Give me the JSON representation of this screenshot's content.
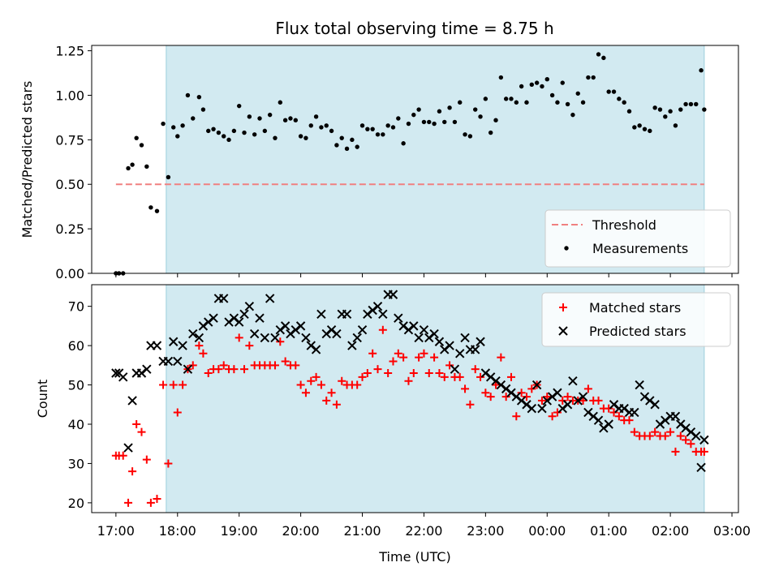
{
  "chart_data": [
    {
      "type": "scatter",
      "title": "Flux total observing time = 8.75 h",
      "ylabel": "Matched/Predicted stars",
      "xlabel": "",
      "x_unit": "time_utc_hhmm",
      "ylim": [
        0,
        1.28
      ],
      "yticks": [
        "0.00",
        "0.25",
        "0.50",
        "0.75",
        "1.00",
        "1.25"
      ],
      "shaded_span": {
        "x0": "17:49",
        "x1": "02:33"
      },
      "legend_position": "lower-right",
      "series": [
        {
          "name": "Threshold",
          "kind": "dashed-line",
          "color": "#f08080",
          "x": [
            "17:00",
            "02:33"
          ],
          "y": [
            0.5,
            0.5
          ]
        },
        {
          "name": "Measurements",
          "kind": "dots",
          "color": "#000000",
          "x": [
            "17:00",
            "17:03",
            "17:07",
            "17:12",
            "17:16",
            "17:20",
            "17:25",
            "17:30",
            "17:34",
            "17:40",
            "17:46",
            "17:51",
            "17:56",
            "18:00",
            "18:05",
            "18:10",
            "18:15",
            "18:21",
            "18:25",
            "18:30",
            "18:35",
            "18:40",
            "18:45",
            "18:50",
            "18:55",
            "19:00",
            "19:05",
            "19:10",
            "19:15",
            "19:20",
            "19:25",
            "19:30",
            "19:35",
            "19:40",
            "19:45",
            "19:50",
            "19:55",
            "20:00",
            "20:05",
            "20:10",
            "20:15",
            "20:20",
            "20:25",
            "20:30",
            "20:35",
            "20:40",
            "20:45",
            "20:50",
            "20:55",
            "21:00",
            "21:05",
            "21:10",
            "21:15",
            "21:20",
            "21:25",
            "21:30",
            "21:35",
            "21:40",
            "21:45",
            "21:50",
            "21:55",
            "22:00",
            "22:05",
            "22:10",
            "22:15",
            "22:20",
            "22:25",
            "22:30",
            "22:35",
            "22:40",
            "22:45",
            "22:50",
            "22:55",
            "23:00",
            "23:05",
            "23:10",
            "23:15",
            "23:20",
            "23:25",
            "23:30",
            "23:35",
            "23:40",
            "23:45",
            "23:50",
            "23:55",
            "00:00",
            "00:05",
            "00:10",
            "00:15",
            "00:20",
            "00:25",
            "00:30",
            "00:35",
            "00:40",
            "00:45",
            "00:50",
            "00:55",
            "01:00",
            "01:05",
            "01:10",
            "01:15",
            "01:20",
            "01:25",
            "01:30",
            "01:35",
            "01:40",
            "01:45",
            "01:50",
            "01:55",
            "02:00",
            "02:05",
            "02:10",
            "02:15",
            "02:20",
            "02:25",
            "02:30",
            "02:33"
          ],
          "y": [
            0.0,
            0.0,
            0.0,
            0.59,
            0.61,
            0.76,
            0.72,
            0.6,
            0.37,
            0.35,
            0.84,
            0.54,
            0.82,
            0.77,
            0.83,
            1.0,
            0.87,
            0.99,
            0.92,
            0.8,
            0.81,
            0.79,
            0.77,
            0.75,
            0.8,
            0.94,
            0.79,
            0.88,
            0.78,
            0.87,
            0.8,
            0.89,
            0.76,
            0.96,
            0.86,
            0.87,
            0.86,
            0.77,
            0.76,
            0.83,
            0.88,
            0.82,
            0.83,
            0.8,
            0.72,
            0.76,
            0.7,
            0.75,
            0.71,
            0.83,
            0.81,
            0.81,
            0.78,
            0.78,
            0.83,
            0.82,
            0.87,
            0.73,
            0.84,
            0.89,
            0.92,
            0.85,
            0.85,
            0.84,
            0.91,
            0.85,
            0.93,
            0.85,
            0.96,
            0.78,
            0.77,
            0.92,
            0.88,
            0.98,
            0.79,
            0.86,
            1.1,
            0.98,
            0.98,
            0.96,
            1.05,
            0.96,
            1.06,
            1.07,
            1.05,
            1.09,
            1.0,
            0.96,
            1.07,
            0.95,
            0.89,
            1.01,
            0.96,
            1.1,
            1.1,
            1.23,
            1.21,
            1.02,
            1.02,
            0.98,
            0.96,
            0.91,
            0.82,
            0.83,
            0.81,
            0.8,
            0.93,
            0.92,
            0.88,
            0.91,
            0.83,
            0.92,
            0.95,
            0.95,
            0.95,
            1.14,
            0.92
          ]
        }
      ]
    },
    {
      "type": "scatter",
      "title": "",
      "ylabel": "Count",
      "xlabel": "Time (UTC)",
      "x_unit": "time_utc_hhmm",
      "ylim": [
        17.5,
        75.5
      ],
      "yticks": [
        "20",
        "30",
        "40",
        "50",
        "60",
        "70"
      ],
      "xticks": [
        "17:00",
        "18:00",
        "19:00",
        "20:00",
        "21:00",
        "22:00",
        "23:00",
        "00:00",
        "01:00",
        "02:00",
        "03:00"
      ],
      "shaded_span": {
        "x0": "17:49",
        "x1": "02:33"
      },
      "legend_position": "top-right",
      "series": [
        {
          "name": "Matched stars",
          "kind": "plus",
          "color": "#ff0000",
          "x": [
            "17:00",
            "17:03",
            "17:07",
            "17:12",
            "17:16",
            "17:20",
            "17:25",
            "17:30",
            "17:34",
            "17:40",
            "17:46",
            "17:51",
            "17:56",
            "18:00",
            "18:05",
            "18:10",
            "18:15",
            "18:21",
            "18:25",
            "18:30",
            "18:35",
            "18:40",
            "18:45",
            "18:50",
            "18:55",
            "19:00",
            "19:05",
            "19:10",
            "19:15",
            "19:20",
            "19:25",
            "19:30",
            "19:35",
            "19:40",
            "19:45",
            "19:50",
            "19:55",
            "20:00",
            "20:05",
            "20:10",
            "20:15",
            "20:20",
            "20:25",
            "20:30",
            "20:35",
            "20:40",
            "20:45",
            "20:50",
            "20:55",
            "21:00",
            "21:05",
            "21:10",
            "21:15",
            "21:20",
            "21:25",
            "21:30",
            "21:35",
            "21:40",
            "21:45",
            "21:50",
            "21:55",
            "22:00",
            "22:05",
            "22:10",
            "22:15",
            "22:20",
            "22:25",
            "22:30",
            "22:35",
            "22:40",
            "22:45",
            "22:50",
            "22:55",
            "23:00",
            "23:05",
            "23:10",
            "23:15",
            "23:20",
            "23:25",
            "23:30",
            "23:35",
            "23:40",
            "23:45",
            "23:50",
            "23:55",
            "00:00",
            "00:05",
            "00:10",
            "00:15",
            "00:20",
            "00:25",
            "00:30",
            "00:35",
            "00:40",
            "00:45",
            "00:50",
            "00:55",
            "01:00",
            "01:05",
            "01:10",
            "01:15",
            "01:20",
            "01:25",
            "01:30",
            "01:35",
            "01:40",
            "01:45",
            "01:50",
            "01:55",
            "02:00",
            "02:05",
            "02:10",
            "02:15",
            "02:20",
            "02:25",
            "02:30",
            "02:33"
          ],
          "y": [
            32,
            32,
            32,
            20,
            28,
            40,
            38,
            31,
            20,
            21,
            50,
            30,
            50,
            43,
            50,
            54,
            55,
            60,
            58,
            53,
            54,
            54,
            55,
            54,
            54,
            62,
            54,
            60,
            55,
            55,
            55,
            55,
            55,
            61,
            56,
            55,
            55,
            50,
            48,
            51,
            52,
            50,
            46,
            48,
            45,
            51,
            50,
            50,
            50,
            52,
            53,
            58,
            54,
            64,
            53,
            56,
            58,
            57,
            51,
            53,
            57,
            58,
            53,
            57,
            53,
            52,
            55,
            52,
            52,
            49,
            45,
            54,
            52,
            48,
            47,
            50,
            57,
            47,
            52,
            42,
            48,
            47,
            49,
            50,
            46,
            47,
            42,
            43,
            46,
            47,
            46,
            46,
            46,
            49,
            46,
            46,
            44,
            44,
            43,
            42,
            41,
            41,
            38,
            37,
            37,
            37,
            38,
            37,
            37,
            38,
            33,
            37,
            36,
            35,
            33,
            33,
            33
          ]
        },
        {
          "name": "Predicted stars",
          "kind": "cross",
          "color": "#000000",
          "x": [
            "17:00",
            "17:03",
            "17:07",
            "17:12",
            "17:16",
            "17:20",
            "17:25",
            "17:30",
            "17:34",
            "17:40",
            "17:46",
            "17:51",
            "17:56",
            "18:00",
            "18:05",
            "18:10",
            "18:15",
            "18:21",
            "18:25",
            "18:30",
            "18:35",
            "18:40",
            "18:45",
            "18:50",
            "18:55",
            "19:00",
            "19:05",
            "19:10",
            "19:15",
            "19:20",
            "19:25",
            "19:30",
            "19:35",
            "19:40",
            "19:45",
            "19:50",
            "19:55",
            "20:00",
            "20:05",
            "20:10",
            "20:15",
            "20:20",
            "20:25",
            "20:30",
            "20:35",
            "20:40",
            "20:45",
            "20:50",
            "20:55",
            "21:00",
            "21:05",
            "21:10",
            "21:15",
            "21:20",
            "21:25",
            "21:30",
            "21:35",
            "21:40",
            "21:45",
            "21:50",
            "21:55",
            "22:00",
            "22:05",
            "22:10",
            "22:15",
            "22:20",
            "22:25",
            "22:30",
            "22:35",
            "22:40",
            "22:45",
            "22:50",
            "22:55",
            "23:00",
            "23:05",
            "23:10",
            "23:15",
            "23:20",
            "23:25",
            "23:30",
            "23:35",
            "23:40",
            "23:45",
            "23:50",
            "23:55",
            "00:00",
            "00:05",
            "00:10",
            "00:15",
            "00:20",
            "00:25",
            "00:30",
            "00:35",
            "00:40",
            "00:45",
            "00:50",
            "00:55",
            "01:00",
            "01:05",
            "01:10",
            "01:15",
            "01:20",
            "01:25",
            "01:30",
            "01:35",
            "01:40",
            "01:45",
            "01:50",
            "01:55",
            "02:00",
            "02:05",
            "02:10",
            "02:15",
            "02:20",
            "02:25",
            "02:30",
            "02:33"
          ],
          "y": [
            53,
            53,
            52,
            34,
            46,
            53,
            53,
            54,
            60,
            60,
            56,
            56,
            61,
            56,
            60,
            54,
            63,
            62,
            65,
            66,
            67,
            72,
            72,
            66,
            67,
            66,
            68,
            70,
            63,
            67,
            62,
            72,
            62,
            64,
            65,
            63,
            64,
            65,
            62,
            60,
            59,
            68,
            63,
            64,
            63,
            68,
            68,
            60,
            62,
            64,
            68,
            69,
            70,
            68,
            73,
            73,
            67,
            65,
            64,
            65,
            62,
            64,
            62,
            63,
            61,
            59,
            60,
            54,
            58,
            62,
            59,
            59,
            61,
            53,
            52,
            51,
            50,
            49,
            48,
            47,
            46,
            45,
            44,
            50,
            44,
            46,
            47,
            48,
            44,
            45,
            51,
            46,
            47,
            43,
            42,
            41,
            39,
            40,
            45,
            44,
            44,
            43,
            43,
            50,
            47,
            46,
            45,
            40,
            41,
            42,
            42,
            40,
            39,
            38,
            37,
            29,
            36
          ]
        }
      ]
    }
  ]
}
